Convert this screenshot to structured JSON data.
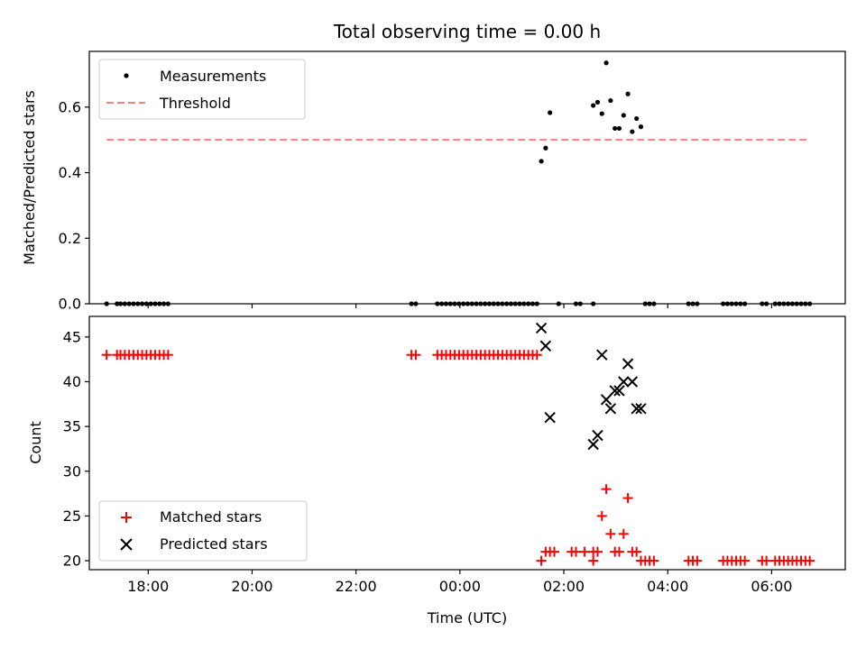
{
  "chart_data": [
    {
      "type": "scatter",
      "title": "Total observing time = 0.00 h",
      "xlabel": "",
      "ylabel": "Matched/Predicted stars",
      "xlim": [
        "16:52",
        "07:25"
      ],
      "ylim": [
        0,
        0.77
      ],
      "yticks": [
        0.0,
        0.2,
        0.4,
        0.6
      ],
      "ytick_labels": [
        "0.0",
        "0.2",
        "0.4",
        "0.6"
      ],
      "legend_position": "top-left",
      "series": [
        {
          "name": "Measurements",
          "kind": "points",
          "color": "#000000",
          "points": [
            [
              "17:12",
              0
            ],
            [
              "17:24",
              0
            ],
            [
              "17:28",
              0
            ],
            [
              "17:33",
              0
            ],
            [
              "17:38",
              0
            ],
            [
              "17:43",
              0
            ],
            [
              "17:48",
              0
            ],
            [
              "17:53",
              0
            ],
            [
              "17:58",
              0
            ],
            [
              "18:03",
              0
            ],
            [
              "18:08",
              0
            ],
            [
              "18:13",
              0
            ],
            [
              "18:18",
              0
            ],
            [
              "18:23",
              0
            ],
            [
              "23:04",
              0
            ],
            [
              "23:09",
              0
            ],
            [
              "23:34",
              0
            ],
            [
              "23:39",
              0
            ],
            [
              "23:44",
              0
            ],
            [
              "23:49",
              0
            ],
            [
              "23:54",
              0
            ],
            [
              "23:59",
              0
            ],
            [
              "00:04",
              0
            ],
            [
              "00:09",
              0
            ],
            [
              "00:14",
              0
            ],
            [
              "00:19",
              0
            ],
            [
              "00:24",
              0
            ],
            [
              "00:29",
              0
            ],
            [
              "00:34",
              0
            ],
            [
              "00:39",
              0
            ],
            [
              "00:44",
              0
            ],
            [
              "00:49",
              0
            ],
            [
              "00:54",
              0
            ],
            [
              "00:59",
              0
            ],
            [
              "01:04",
              0
            ],
            [
              "01:09",
              0
            ],
            [
              "01:14",
              0
            ],
            [
              "01:19",
              0
            ],
            [
              "01:24",
              0
            ],
            [
              "01:29",
              0
            ],
            [
              "01:34",
              0.435
            ],
            [
              "01:39",
              0.475
            ],
            [
              "01:44",
              0.583
            ],
            [
              "01:54",
              0
            ],
            [
              "02:14",
              0
            ],
            [
              "02:19",
              0
            ],
            [
              "02:34",
              0.605
            ],
            [
              "02:39",
              0.615
            ],
            [
              "02:34",
              0
            ],
            [
              "02:44",
              0.58
            ],
            [
              "02:49",
              0.735
            ],
            [
              "02:54",
              0.62
            ],
            [
              "02:59",
              0.535
            ],
            [
              "03:04",
              0.535
            ],
            [
              "03:09",
              0.575
            ],
            [
              "03:14",
              0.64
            ],
            [
              "03:19",
              0.525
            ],
            [
              "03:24",
              0.565
            ],
            [
              "03:29",
              0.54
            ],
            [
              "03:34",
              0
            ],
            [
              "03:39",
              0
            ],
            [
              "03:44",
              0
            ],
            [
              "04:24",
              0
            ],
            [
              "04:29",
              0
            ],
            [
              "04:34",
              0
            ],
            [
              "05:04",
              0
            ],
            [
              "05:09",
              0
            ],
            [
              "05:14",
              0
            ],
            [
              "05:19",
              0
            ],
            [
              "05:24",
              0
            ],
            [
              "05:29",
              0
            ],
            [
              "05:49",
              0
            ],
            [
              "05:54",
              0
            ],
            [
              "06:04",
              0
            ],
            [
              "06:09",
              0
            ],
            [
              "06:14",
              0
            ],
            [
              "06:19",
              0
            ],
            [
              "06:24",
              0
            ],
            [
              "06:29",
              0
            ],
            [
              "06:34",
              0
            ],
            [
              "06:39",
              0
            ],
            [
              "06:44",
              0
            ]
          ]
        },
        {
          "name": "Threshold",
          "kind": "dashed-line",
          "color": "#ff7f7f",
          "points": [
            [
              "17:12",
              0.5
            ],
            [
              "06:44",
              0.5
            ]
          ]
        }
      ]
    },
    {
      "type": "scatter",
      "title": "",
      "xlabel": "Time (UTC)",
      "ylabel": "Count",
      "xlim": [
        "16:52",
        "07:25"
      ],
      "ylim": [
        19,
        47.3
      ],
      "yticks": [
        20,
        25,
        30,
        35,
        40,
        45
      ],
      "ytick_labels": [
        "20",
        "25",
        "30",
        "35",
        "40",
        "45"
      ],
      "xticks": [
        "18:00",
        "20:00",
        "22:00",
        "00:00",
        "02:00",
        "04:00",
        "06:00"
      ],
      "xtick_labels": [
        "18:00",
        "20:00",
        "22:00",
        "00:00",
        "02:00",
        "04:00",
        "06:00"
      ],
      "legend_position": "bottom-left",
      "series": [
        {
          "name": "Matched stars",
          "kind": "plus",
          "color": "#ff0000",
          "points": [
            [
              "17:12",
              43
            ],
            [
              "17:24",
              43
            ],
            [
              "17:28",
              43
            ],
            [
              "17:33",
              43
            ],
            [
              "17:38",
              43
            ],
            [
              "17:43",
              43
            ],
            [
              "17:48",
              43
            ],
            [
              "17:53",
              43
            ],
            [
              "17:58",
              43
            ],
            [
              "18:03",
              43
            ],
            [
              "18:08",
              43
            ],
            [
              "18:13",
              43
            ],
            [
              "18:18",
              43
            ],
            [
              "18:23",
              43
            ],
            [
              "23:04",
              43
            ],
            [
              "23:09",
              43
            ],
            [
              "23:34",
              43
            ],
            [
              "23:39",
              43
            ],
            [
              "23:44",
              43
            ],
            [
              "23:49",
              43
            ],
            [
              "23:54",
              43
            ],
            [
              "23:59",
              43
            ],
            [
              "00:04",
              43
            ],
            [
              "00:09",
              43
            ],
            [
              "00:14",
              43
            ],
            [
              "00:19",
              43
            ],
            [
              "00:24",
              43
            ],
            [
              "00:29",
              43
            ],
            [
              "00:34",
              43
            ],
            [
              "00:39",
              43
            ],
            [
              "00:44",
              43
            ],
            [
              "00:49",
              43
            ],
            [
              "00:54",
              43
            ],
            [
              "00:59",
              43
            ],
            [
              "01:04",
              43
            ],
            [
              "01:09",
              43
            ],
            [
              "01:14",
              43
            ],
            [
              "01:19",
              43
            ],
            [
              "01:24",
              43
            ],
            [
              "01:29",
              43
            ],
            [
              "01:34",
              20
            ],
            [
              "01:39",
              21
            ],
            [
              "01:44",
              21
            ],
            [
              "01:49",
              21
            ],
            [
              "02:09",
              21
            ],
            [
              "02:14",
              21
            ],
            [
              "02:24",
              21
            ],
            [
              "02:34",
              21
            ],
            [
              "02:39",
              21
            ],
            [
              "02:34",
              20
            ],
            [
              "02:44",
              25
            ],
            [
              "02:49",
              28
            ],
            [
              "02:54",
              23
            ],
            [
              "02:59",
              21
            ],
            [
              "03:04",
              21
            ],
            [
              "03:09",
              23
            ],
            [
              "03:14",
              27
            ],
            [
              "03:19",
              21
            ],
            [
              "03:24",
              21
            ],
            [
              "03:29",
              20
            ],
            [
              "03:34",
              20
            ],
            [
              "03:39",
              20
            ],
            [
              "03:44",
              20
            ],
            [
              "04:24",
              20
            ],
            [
              "04:29",
              20
            ],
            [
              "04:34",
              20
            ],
            [
              "05:04",
              20
            ],
            [
              "05:09",
              20
            ],
            [
              "05:14",
              20
            ],
            [
              "05:19",
              20
            ],
            [
              "05:24",
              20
            ],
            [
              "05:29",
              20
            ],
            [
              "05:49",
              20
            ],
            [
              "05:54",
              20
            ],
            [
              "06:04",
              20
            ],
            [
              "06:09",
              20
            ],
            [
              "06:14",
              20
            ],
            [
              "06:19",
              20
            ],
            [
              "06:24",
              20
            ],
            [
              "06:29",
              20
            ],
            [
              "06:34",
              20
            ],
            [
              "06:39",
              20
            ],
            [
              "06:44",
              20
            ]
          ]
        },
        {
          "name": "Predicted stars",
          "kind": "x",
          "color": "#000000",
          "points": [
            [
              "01:34",
              46
            ],
            [
              "01:39",
              44
            ],
            [
              "01:44",
              36
            ],
            [
              "02:34",
              33
            ],
            [
              "02:39",
              34
            ],
            [
              "02:44",
              43
            ],
            [
              "02:49",
              38
            ],
            [
              "02:54",
              37
            ],
            [
              "02:59",
              39
            ],
            [
              "03:04",
              39
            ],
            [
              "03:09",
              40
            ],
            [
              "03:14",
              42
            ],
            [
              "03:19",
              40
            ],
            [
              "03:24",
              37
            ],
            [
              "03:29",
              37
            ]
          ]
        }
      ]
    }
  ]
}
